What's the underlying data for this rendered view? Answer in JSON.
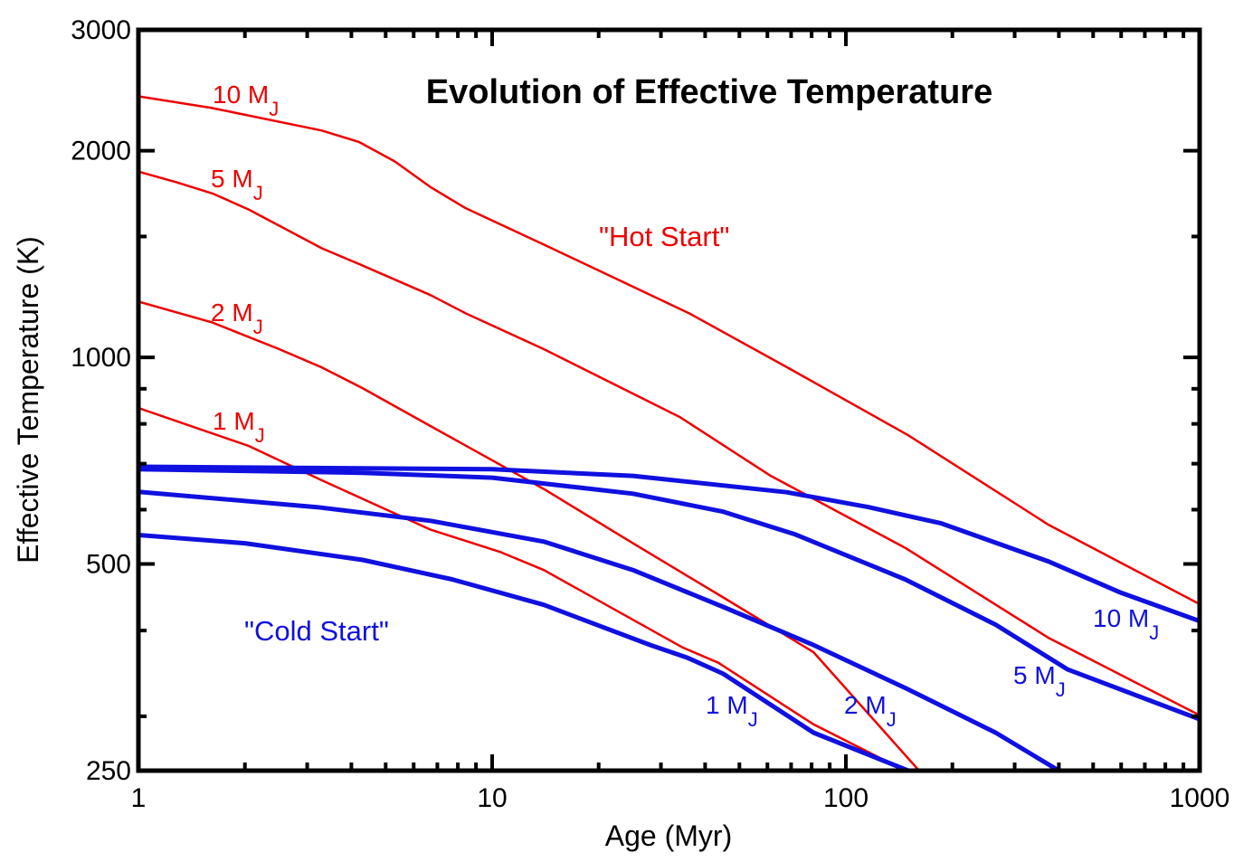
{
  "chart_data": {
    "type": "line",
    "title": "Evolution of Effective Temperature",
    "xlabel": "Age (Myr)",
    "ylabel": "Effective Temperature (K)",
    "xscale": "log",
    "yscale": "log",
    "xlim": [
      1,
      1000
    ],
    "ylim": [
      250,
      3000
    ],
    "xticks": [
      1,
      10,
      100,
      1000
    ],
    "yticks": [
      250,
      500,
      1000,
      2000,
      3000
    ],
    "xminorticks": [
      2,
      3,
      4,
      5,
      6,
      7,
      8,
      9,
      20,
      30,
      40,
      50,
      60,
      70,
      80,
      90,
      200,
      300,
      400,
      500,
      600,
      700,
      800,
      900
    ],
    "yminorticks": [
      300,
      400,
      600,
      700,
      800,
      900,
      1500
    ],
    "annotations": [
      "\"Hot Start\"",
      "\"Cold Start\""
    ],
    "series": [
      {
        "label": {
          "text": "10 M",
          "sub": "J"
        },
        "color": "#ee0000",
        "x": [
          1,
          1.6,
          3.3,
          4.2,
          5.3,
          6.7,
          8.4,
          14,
          36,
          70,
          150,
          375,
          1000
        ],
        "values": [
          2400,
          2310,
          2140,
          2060,
          1930,
          1770,
          1650,
          1460,
          1160,
          960,
          770,
          570,
          437
        ]
      },
      {
        "label": {
          "text": "5 M",
          "sub": "J"
        },
        "color": "#ee0000",
        "x": [
          1,
          1.28,
          1.62,
          2.05,
          3.3,
          4.2,
          6.7,
          8.4,
          14,
          34,
          61,
          147,
          375,
          1000
        ],
        "values": [
          1865,
          1800,
          1733,
          1642,
          1442,
          1368,
          1232,
          1160,
          1028,
          818,
          673,
          528,
          390,
          301
        ]
      },
      {
        "label": {
          "text": "2 M",
          "sub": "J"
        },
        "color": "#ee0000",
        "x": [
          1,
          1.62,
          2.5,
          3.3,
          4.3,
          6.7,
          14,
          25,
          45,
          81,
          161
        ],
        "values": [
          1206,
          1124,
          1028,
          967,
          902,
          794,
          643,
          536,
          447,
          372,
          250
        ]
      },
      {
        "label": {
          "text": "1 M",
          "sub": "J"
        },
        "color": "#ee0000",
        "x": [
          1,
          2.05,
          3.3,
          6.7,
          10.6,
          14,
          34.5,
          43.6,
          81,
          147
        ],
        "values": [
          844,
          743,
          662,
          561,
          520,
          490,
          378,
          359,
          292,
          250
        ]
      },
      {
        "label": {
          "text": "10 M",
          "sub": "J"
        },
        "color": "#1010e0",
        "x": [
          1,
          10,
          25,
          68,
          116,
          186,
          375,
          600,
          1000
        ],
        "values": [
          693,
          687,
          672,
          636,
          605,
          573,
          504,
          454,
          413
        ]
      },
      {
        "label": {
          "text": "5 M",
          "sub": "J"
        },
        "color": "#1010e0",
        "x": [
          1,
          4.3,
          10,
          25,
          45,
          72,
          147,
          265,
          424,
          1000
        ],
        "values": [
          687,
          679,
          668,
          633,
          596,
          552,
          475,
          408,
          351,
          297
        ]
      },
      {
        "label": {
          "text": "2 M",
          "sub": "J"
        },
        "color": "#1010e0",
        "x": [
          1,
          3.2,
          6.7,
          14,
          25,
          45,
          81,
          147,
          265,
          400
        ],
        "values": [
          637,
          605,
          578,
          539,
          490,
          433,
          381,
          330,
          284,
          250
        ]
      },
      {
        "label": {
          "text": "1 M",
          "sub": "J"
        },
        "color": "#1010e0",
        "x": [
          1,
          2,
          4.3,
          7.7,
          14,
          28,
          35.7,
          45,
          81,
          150
        ],
        "values": [
          551,
          536,
          507,
          475,
          436,
          381,
          365,
          346,
          284,
          250
        ]
      }
    ]
  }
}
